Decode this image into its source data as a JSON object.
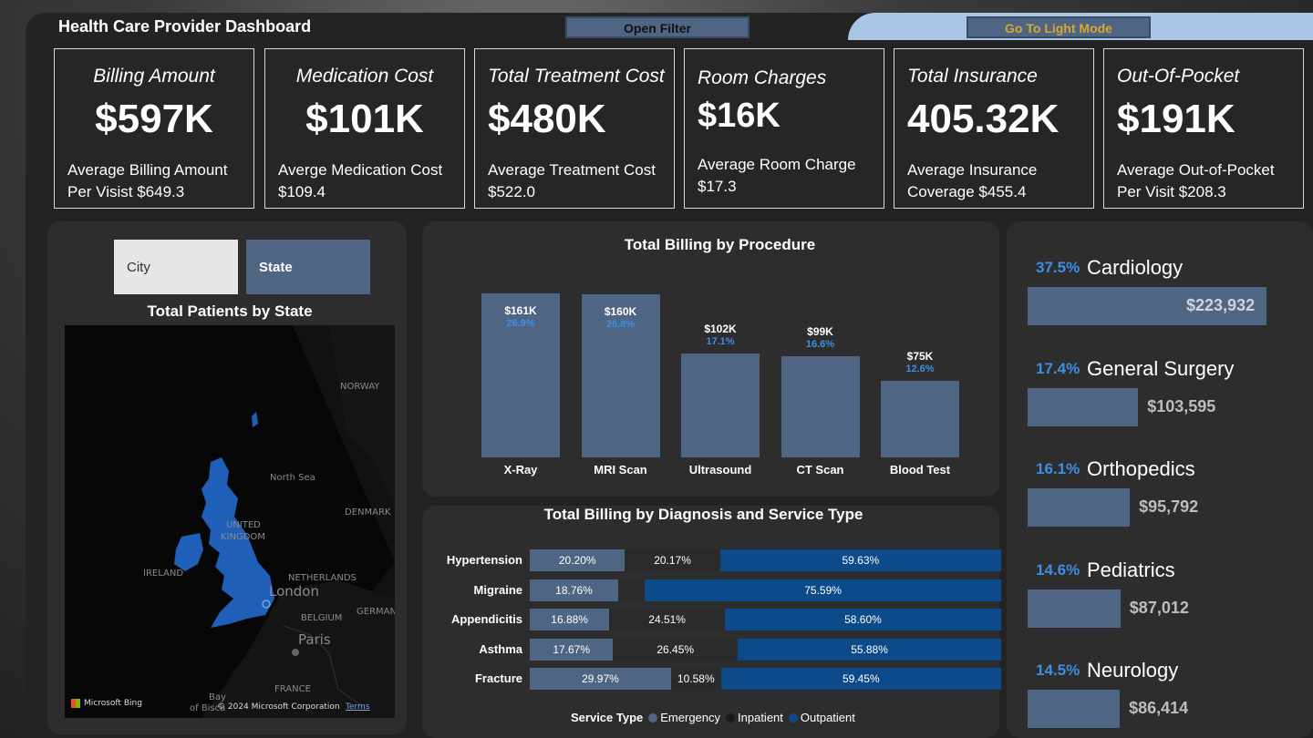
{
  "header": {
    "title": "Health Care Provider Dashboard",
    "filter_button": "Open Filter",
    "mode_button": "Go To Light Mode"
  },
  "kpis": [
    {
      "title": "Billing Amount",
      "value": "$597K",
      "sub1": "Average Billing Amount",
      "sub2": "Per Visist $649.3"
    },
    {
      "title": "Medication Cost",
      "value": "$101K",
      "sub1": "Averge Medication Cost",
      "sub2": "$109.4"
    },
    {
      "title": "Total Treatment Cost",
      "value": "$480K",
      "sub1": "Average Treatment Cost",
      "sub2": "$522.0"
    },
    {
      "title": "Room Charges",
      "value": "$16K",
      "sub1": "Average Room Charge",
      "sub2": "$17.3"
    },
    {
      "title": "Total Insurance",
      "value": "405.32K",
      "sub1": "Average Insurance",
      "sub2": "Coverage $455.4"
    },
    {
      "title": "Out-Of-Pocket",
      "value": "$191K",
      "sub1": "Average Out-of-Pocket",
      "sub2": "Per Visit $208.3"
    }
  ],
  "slicers": {
    "city": "City",
    "state": "State"
  },
  "map": {
    "title": "Total Patients by State",
    "labels": {
      "norway": "NORWAY",
      "north_sea": "North Sea",
      "denmark": "DENMARK",
      "uk1": "UNITED",
      "uk2": "KINGDOM",
      "ireland": "IRELAND",
      "netherlands": "NETHERLANDS",
      "london": "London",
      "belgium": "BELGIUM",
      "germany": "GERMAN",
      "paris": "Paris",
      "france": "FRANCE",
      "bay": "Bay",
      "biscay": "of Bisca"
    },
    "attribution": "Microsoft Bing",
    "copyright": "© 2024 Microsoft Corporation",
    "terms": "Terms",
    "colors": {
      "region": "#1f5fb8",
      "background": "#070707"
    }
  },
  "procedure_chart": {
    "title": "Total Billing by Procedure"
  },
  "diagnosis_chart": {
    "title": "Total Billing by Diagnosis and Service Type",
    "legend_title": "Service Type"
  },
  "chart_data": [
    {
      "type": "bar",
      "title": "Total Billing by Procedure",
      "categories": [
        "X-Ray",
        "MRI Scan",
        "Ultrasound",
        "CT Scan",
        "Blood Test"
      ],
      "values": [
        161000,
        160000,
        102000,
        99000,
        75000
      ],
      "value_labels": [
        "$161K",
        "$160K",
        "$102K",
        "$99K",
        "$75K"
      ],
      "percent_labels": [
        "26.9%",
        "26.8%",
        "17.1%",
        "16.6%",
        "12.6%"
      ],
      "color": "#4f6584"
    },
    {
      "type": "bar",
      "title": "Total Billing by Diagnosis and Service Type",
      "stacked": "100%",
      "orientation": "horizontal",
      "categories": [
        "Hypertension",
        "Migraine",
        "Appendicitis",
        "Asthma",
        "Fracture"
      ],
      "series": [
        {
          "name": "Emergency",
          "color": "#4f6584",
          "values": [
            20.2,
            18.76,
            16.88,
            17.67,
            29.97
          ],
          "labels": [
            "20.20%",
            "18.76%",
            "16.88%",
            "17.67%",
            "29.97%"
          ]
        },
        {
          "name": "Inpatient",
          "color": "#2b2b2b",
          "values": [
            20.17,
            5.65,
            24.51,
            26.45,
            10.58
          ],
          "labels": [
            "20.17%",
            "",
            "24.51%",
            "26.45%",
            "10.58%"
          ]
        },
        {
          "name": "Outpatient",
          "color": "#0d4a8a",
          "values": [
            59.63,
            75.59,
            58.6,
            55.88,
            59.45
          ],
          "labels": [
            "59.63%",
            "75.59%",
            "58.60%",
            "55.88%",
            "59.45%"
          ]
        }
      ],
      "legend": "bottom"
    },
    {
      "type": "bar",
      "orientation": "horizontal",
      "categories": [
        "Cardiology",
        "General Surgery",
        "Orthopedics",
        "Pediatrics",
        "Neurology"
      ],
      "values": [
        223932,
        103595,
        95792,
        87012,
        86414
      ],
      "value_labels": [
        "$223,932",
        "$103,595",
        "$95,792",
        "$87,012",
        "$86,414"
      ],
      "percent_labels": [
        "37.5%",
        "17.4%",
        "16.1%",
        "14.6%",
        "14.5%"
      ],
      "color": "#4f6584"
    }
  ]
}
